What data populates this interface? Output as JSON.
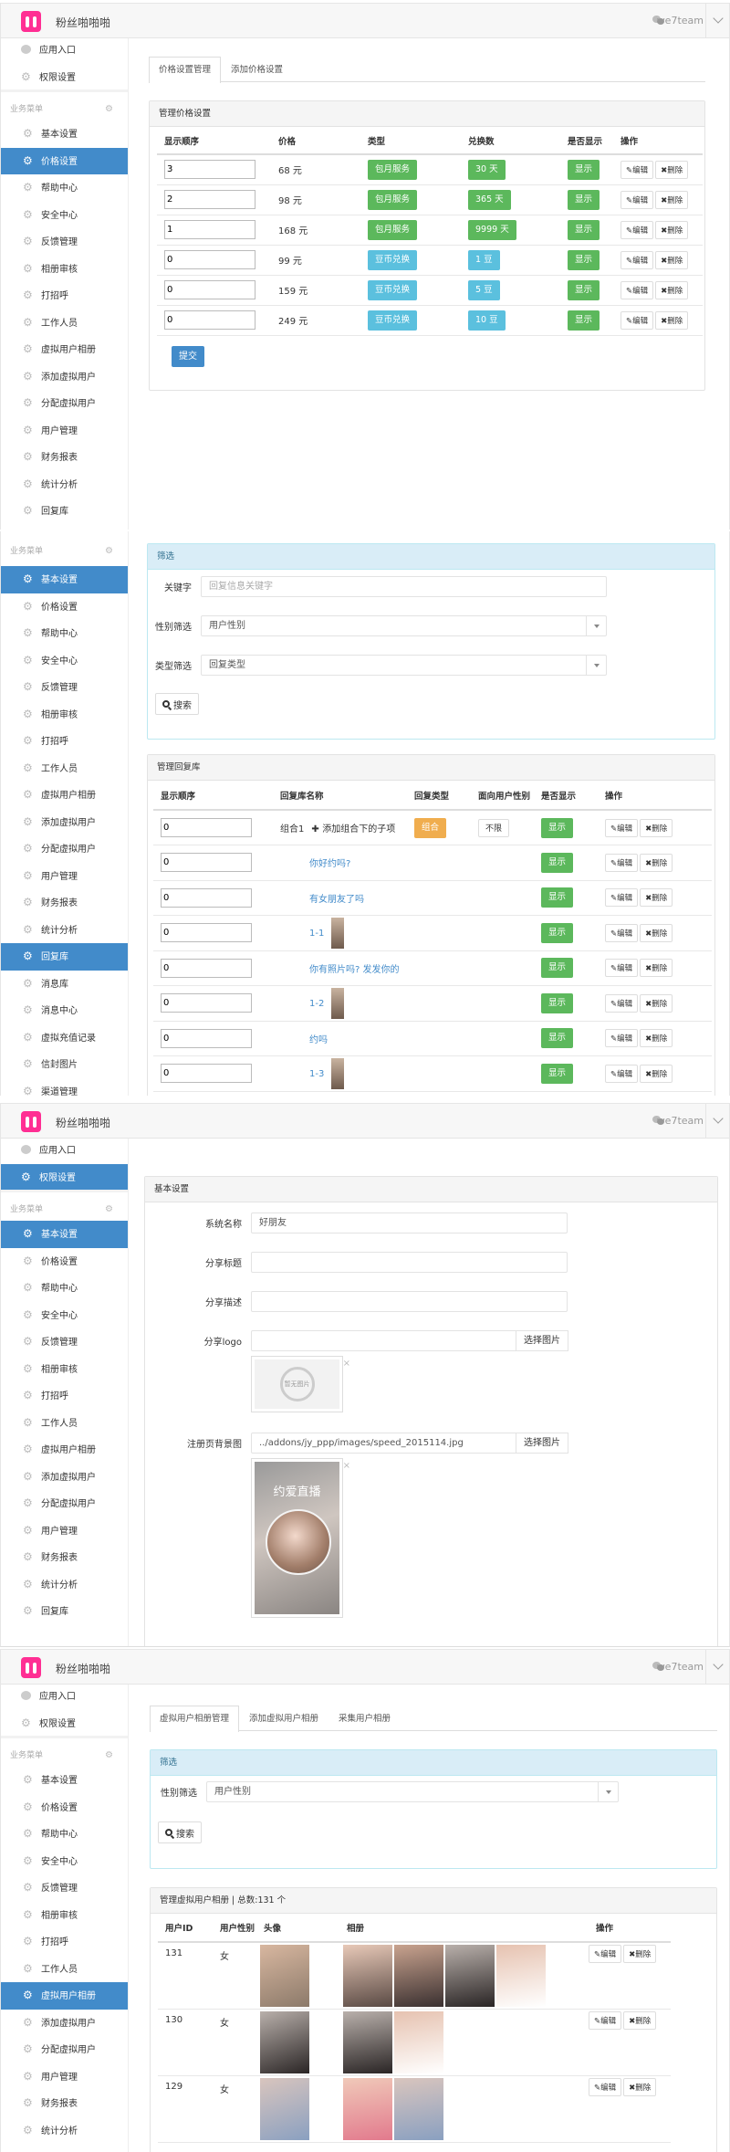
{
  "app": {
    "name": "粉丝啪啪啪",
    "account": "we7team"
  },
  "colors": {
    "primary": "#428bca",
    "success": "#5cb85c",
    "info": "#5bc0de",
    "warning": "#f0ad4e",
    "logo": "#ff2e93"
  },
  "actions": {
    "edit": "编辑",
    "delete": "删除"
  },
  "screen1": {
    "sidebar": {
      "top": [
        "应用入口",
        "权限设置"
      ],
      "group": "业务菜单",
      "items": [
        "基本设置",
        "价格设置",
        "帮助中心",
        "安全中心",
        "反馈管理",
        "相册审核",
        "打招呼",
        "工作人员",
        "虚拟用户相册",
        "添加虚拟用户",
        "分配虚拟用户",
        "用户管理",
        "财务报表",
        "统计分析",
        "回复库"
      ],
      "active": [
        "价格设置"
      ]
    },
    "tabs": [
      "价格设置管理",
      "添加价格设置"
    ],
    "panel_title": "管理价格设置",
    "columns": [
      "显示顺序",
      "价格",
      "类型",
      "兑换数",
      "是否显示",
      "操作"
    ],
    "rows": [
      {
        "order": "3",
        "price": "68 元",
        "type": "包月服务",
        "kind": "success",
        "amount": "30 天",
        "show": "显示"
      },
      {
        "order": "2",
        "price": "98 元",
        "type": "包月服务",
        "kind": "success",
        "amount": "365 天",
        "show": "显示"
      },
      {
        "order": "1",
        "price": "168 元",
        "type": "包月服务",
        "kind": "success",
        "amount": "9999 天",
        "show": "显示"
      },
      {
        "order": "0",
        "price": "99 元",
        "type": "豆币兑换",
        "kind": "info-b",
        "amount": "1 豆",
        "show": "显示"
      },
      {
        "order": "0",
        "price": "159 元",
        "type": "豆币兑换",
        "kind": "info-b",
        "amount": "5 豆",
        "show": "显示"
      },
      {
        "order": "0",
        "price": "249 元",
        "type": "豆币兑换",
        "kind": "info-b",
        "amount": "10 豆",
        "show": "显示"
      }
    ],
    "submit": "提交"
  },
  "screen2": {
    "sidebar": {
      "top": [],
      "group": "业务菜单",
      "items": [
        "基本设置",
        "价格设置",
        "帮助中心",
        "安全中心",
        "反馈管理",
        "相册审核",
        "打招呼",
        "工作人员",
        "虚拟用户相册",
        "添加虚拟用户",
        "分配虚拟用户",
        "用户管理",
        "财务报表",
        "统计分析",
        "回复库",
        "消息库",
        "消息中心",
        "虚拟充值记录",
        "信封图片",
        "渠道管理"
      ],
      "active": [
        "基本设置",
        "回复库"
      ]
    },
    "filter": {
      "title": "筛选",
      "keyword_label": "关键字",
      "keyword_placeholder": "回复信息关键字",
      "gender_label": "性别筛选",
      "gender_value": "用户性别",
      "type_label": "类型筛选",
      "type_value": "回复类型",
      "search": "搜索"
    },
    "panel_title": "管理回复库",
    "columns": [
      "显示顺序",
      "回复库名称",
      "回复类型",
      "面向用户性别",
      "是否显示",
      "操作"
    ],
    "rows": [
      {
        "order": "0",
        "name": "组合1",
        "add_child": "添加组合下的子项",
        "type": "组合",
        "gender": "不限",
        "show": "显示"
      },
      {
        "order": "0",
        "name": "你好约吗?",
        "show": "显示"
      },
      {
        "order": "0",
        "name": "有女朋友了吗",
        "show": "显示"
      },
      {
        "order": "0",
        "name": "1-1",
        "image": true,
        "show": "显示"
      },
      {
        "order": "0",
        "name": "你有照片吗? 发发你的",
        "show": "显示"
      },
      {
        "order": "0",
        "name": "1-2",
        "image": true,
        "show": "显示"
      },
      {
        "order": "0",
        "name": "约吗",
        "show": "显示"
      },
      {
        "order": "0",
        "name": "1-3",
        "image": true,
        "show": "显示"
      }
    ]
  },
  "screen3": {
    "sidebar": {
      "top": [
        "应用入口",
        "权限设置"
      ],
      "group": "业务菜单",
      "items": [
        "基本设置",
        "价格设置",
        "帮助中心",
        "安全中心",
        "反馈管理",
        "相册审核",
        "打招呼",
        "工作人员",
        "虚拟用户相册",
        "添加虚拟用户",
        "分配虚拟用户",
        "用户管理",
        "财务报表",
        "统计分析",
        "回复库"
      ],
      "active": [
        "权限设置",
        "基本设置"
      ]
    },
    "panel_title": "基本设置",
    "fields": {
      "system_name_label": "系统名称",
      "system_name": "好朋友",
      "share_title_label": "分享标题",
      "share_desc_label": "分享描述",
      "share_logo_label": "分享logo",
      "bg_label": "注册页背景图",
      "bg_value": "../addons/jy_ppp/images/speed_2015114.jpg",
      "choose_image": "选择图片",
      "no_image": "暂无图片",
      "remove": "×",
      "poster_text": "约爱直播"
    }
  },
  "screen4": {
    "sidebar": {
      "top": [
        "应用入口",
        "权限设置"
      ],
      "group": "业务菜单",
      "items": [
        "基本设置",
        "价格设置",
        "帮助中心",
        "安全中心",
        "反馈管理",
        "相册审核",
        "打招呼",
        "工作人员",
        "虚拟用户相册",
        "添加虚拟用户",
        "分配虚拟用户",
        "用户管理",
        "财务报表",
        "统计分析"
      ],
      "active": [
        "虚拟用户相册"
      ]
    },
    "tabs": [
      "虚拟用户相册管理",
      "添加虚拟用户相册",
      "采集用户相册"
    ],
    "filter": {
      "title": "筛选",
      "gender_label": "性别筛选",
      "gender_value": "用户性别",
      "search": "搜索"
    },
    "panel_title": "管理虚拟用户相册 | 总数:131 个",
    "columns": [
      "用户ID",
      "用户性别",
      "头像",
      "相册",
      "操作"
    ],
    "rows": [
      {
        "id": "131",
        "gender": "女",
        "photos": 4
      },
      {
        "id": "130",
        "gender": "女",
        "photos": 2
      },
      {
        "id": "129",
        "gender": "女",
        "photos": 2
      }
    ]
  }
}
